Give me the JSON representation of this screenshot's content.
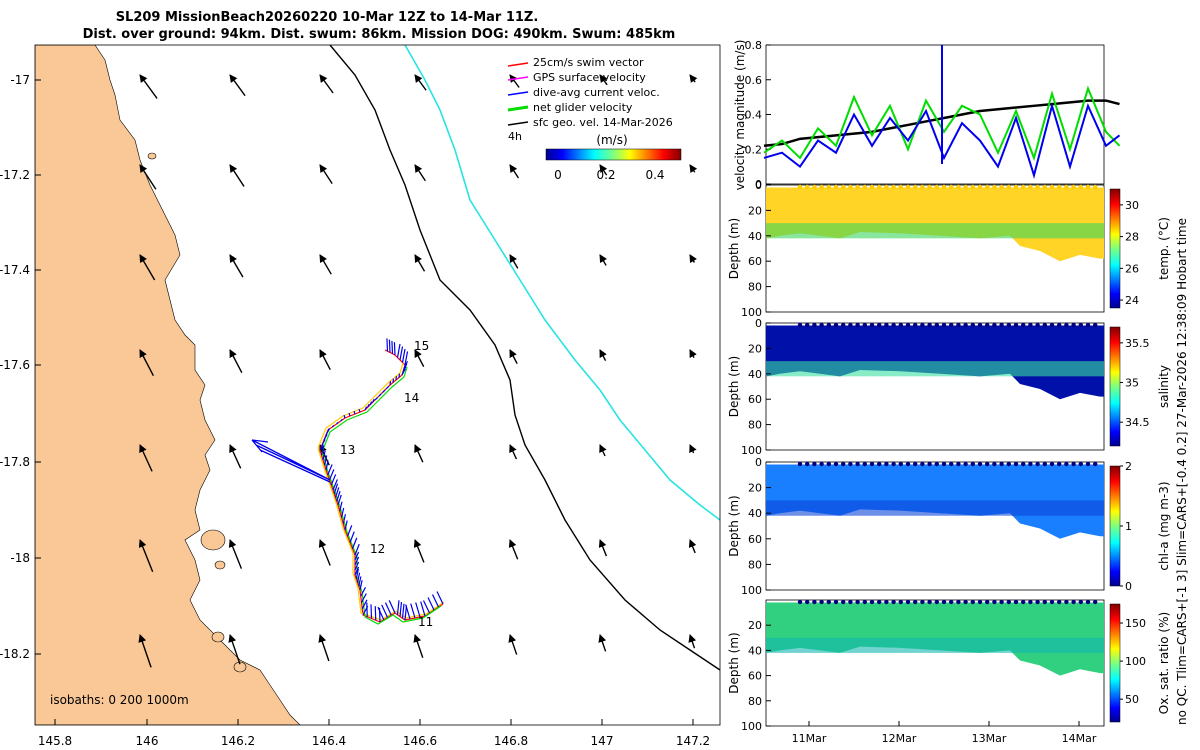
{
  "title": {
    "line1": "SL209 MissionBeach20260220 10-Mar 12Z to 14-Mar 11Z.",
    "line2": "Dist. over ground: 94km. Dist. swum: 86km. Mission DOG: 490km. Swum: 485km"
  },
  "map": {
    "lon_ticks": [
      "145.8",
      "146",
      "146.2",
      "146.4",
      "146.6",
      "146.8",
      "147",
      "147.2"
    ],
    "lat_ticks": [
      "-17",
      "-17.2",
      "-17.4",
      "-17.6",
      "-17.8",
      "-18",
      "-18.2"
    ],
    "legend": [
      {
        "label": "25cm/s swim vector",
        "color": "#ff0000"
      },
      {
        "label": "GPS surface velocity",
        "color": "#ff00ff"
      },
      {
        "label": "dive-avg current veloc.",
        "color": "#0000ff"
      },
      {
        "label": "net glider velocity",
        "color": "#00dd00"
      },
      {
        "label": "sfc geo. vel. 14-Mar-2026",
        "color": "#000000"
      }
    ],
    "colorbar": {
      "note": "4h",
      "unit": "(m/s)",
      "ticks": [
        "0",
        "0.2",
        "0.4"
      ]
    },
    "day_labels": [
      "15",
      "14",
      "13",
      "12",
      "11"
    ],
    "isobaths": "isobaths: 0   200  1000m",
    "colors": {
      "land": "#f9c896",
      "isobath_200": "#000000",
      "isobath_1000": "#29e3e3",
      "track": "#0000ee"
    }
  },
  "chart_data": [
    {
      "type": "line",
      "ylabel": "velocity magnitude (m/s)",
      "ylim": [
        0,
        0.8
      ],
      "yticks": [
        "0",
        "0.2",
        "0.4",
        "0.6",
        "0.8"
      ],
      "x_days": [
        10.5,
        10.7,
        10.9,
        11.1,
        11.3,
        11.5,
        11.7,
        11.9,
        12.1,
        12.3,
        12.5,
        12.7,
        12.9,
        13.1,
        13.3,
        13.5,
        13.7,
        13.9,
        14.1,
        14.3,
        14.45
      ],
      "series": [
        {
          "name": "geo velocity",
          "color": "#000000",
          "values": [
            0.22,
            0.23,
            0.26,
            0.27,
            0.28,
            0.29,
            0.3,
            0.32,
            0.34,
            0.36,
            0.38,
            0.4,
            0.42,
            0.43,
            0.44,
            0.45,
            0.46,
            0.47,
            0.48,
            0.48,
            0.46
          ]
        },
        {
          "name": "net glider velocity",
          "color": "#00dd00",
          "values": [
            0.18,
            0.25,
            0.15,
            0.32,
            0.22,
            0.5,
            0.28,
            0.45,
            0.2,
            0.48,
            0.3,
            0.45,
            0.4,
            0.18,
            0.42,
            0.15,
            0.52,
            0.2,
            0.55,
            0.3,
            0.22
          ]
        },
        {
          "name": "dive-avg current",
          "color": "#0000ee",
          "values": [
            0.15,
            0.18,
            0.1,
            0.25,
            0.18,
            0.4,
            0.22,
            0.38,
            0.25,
            0.42,
            0.15,
            0.35,
            0.25,
            0.1,
            0.38,
            0.05,
            0.45,
            0.1,
            0.45,
            0.22,
            0.28
          ]
        }
      ]
    },
    {
      "type": "heatmap",
      "ylabel": "Depth (m)",
      "ylim": [
        0,
        100
      ],
      "yticks": [
        "0",
        "20",
        "40",
        "60",
        "80",
        "100"
      ],
      "colorbar_label": "temp. (°C)",
      "colorbar_ticks": [
        "30",
        "28",
        "26",
        "24"
      ],
      "colorbar_range": [
        23.5,
        31
      ]
    },
    {
      "type": "heatmap",
      "ylabel": "Depth (m)",
      "ylim": [
        0,
        100
      ],
      "yticks": [
        "0",
        "20",
        "40",
        "60",
        "80",
        "100"
      ],
      "colorbar_label": "salinity",
      "colorbar_ticks": [
        "35.5",
        "35",
        "34.5"
      ],
      "colorbar_range": [
        34.2,
        35.7
      ]
    },
    {
      "type": "heatmap",
      "ylabel": "Depth (m)",
      "ylim": [
        0,
        100
      ],
      "yticks": [
        "0",
        "20",
        "40",
        "60",
        "80",
        "100"
      ],
      "colorbar_label": "chl-a (mg m-3)",
      "colorbar_ticks": [
        "2",
        "1",
        "0"
      ],
      "colorbar_range": [
        0,
        2
      ]
    },
    {
      "type": "heatmap",
      "ylabel": "Depth (m)",
      "ylim": [
        0,
        100
      ],
      "yticks": [
        "20",
        "40",
        "60",
        "80",
        "100"
      ],
      "colorbar_label": "Ox. sat. ratio (%)",
      "colorbar_ticks": [
        "150",
        "100",
        "50"
      ],
      "colorbar_range": [
        20,
        175
      ],
      "xticks": [
        "11Mar",
        "12Mar",
        "13Mar",
        "14Mar"
      ]
    }
  ],
  "side_note": "no QC. Tlim=CARS+[-1 3] Slim=CARS+[-0.4 0.2] 27-Mar-2026 12:38:09 Hobart time"
}
